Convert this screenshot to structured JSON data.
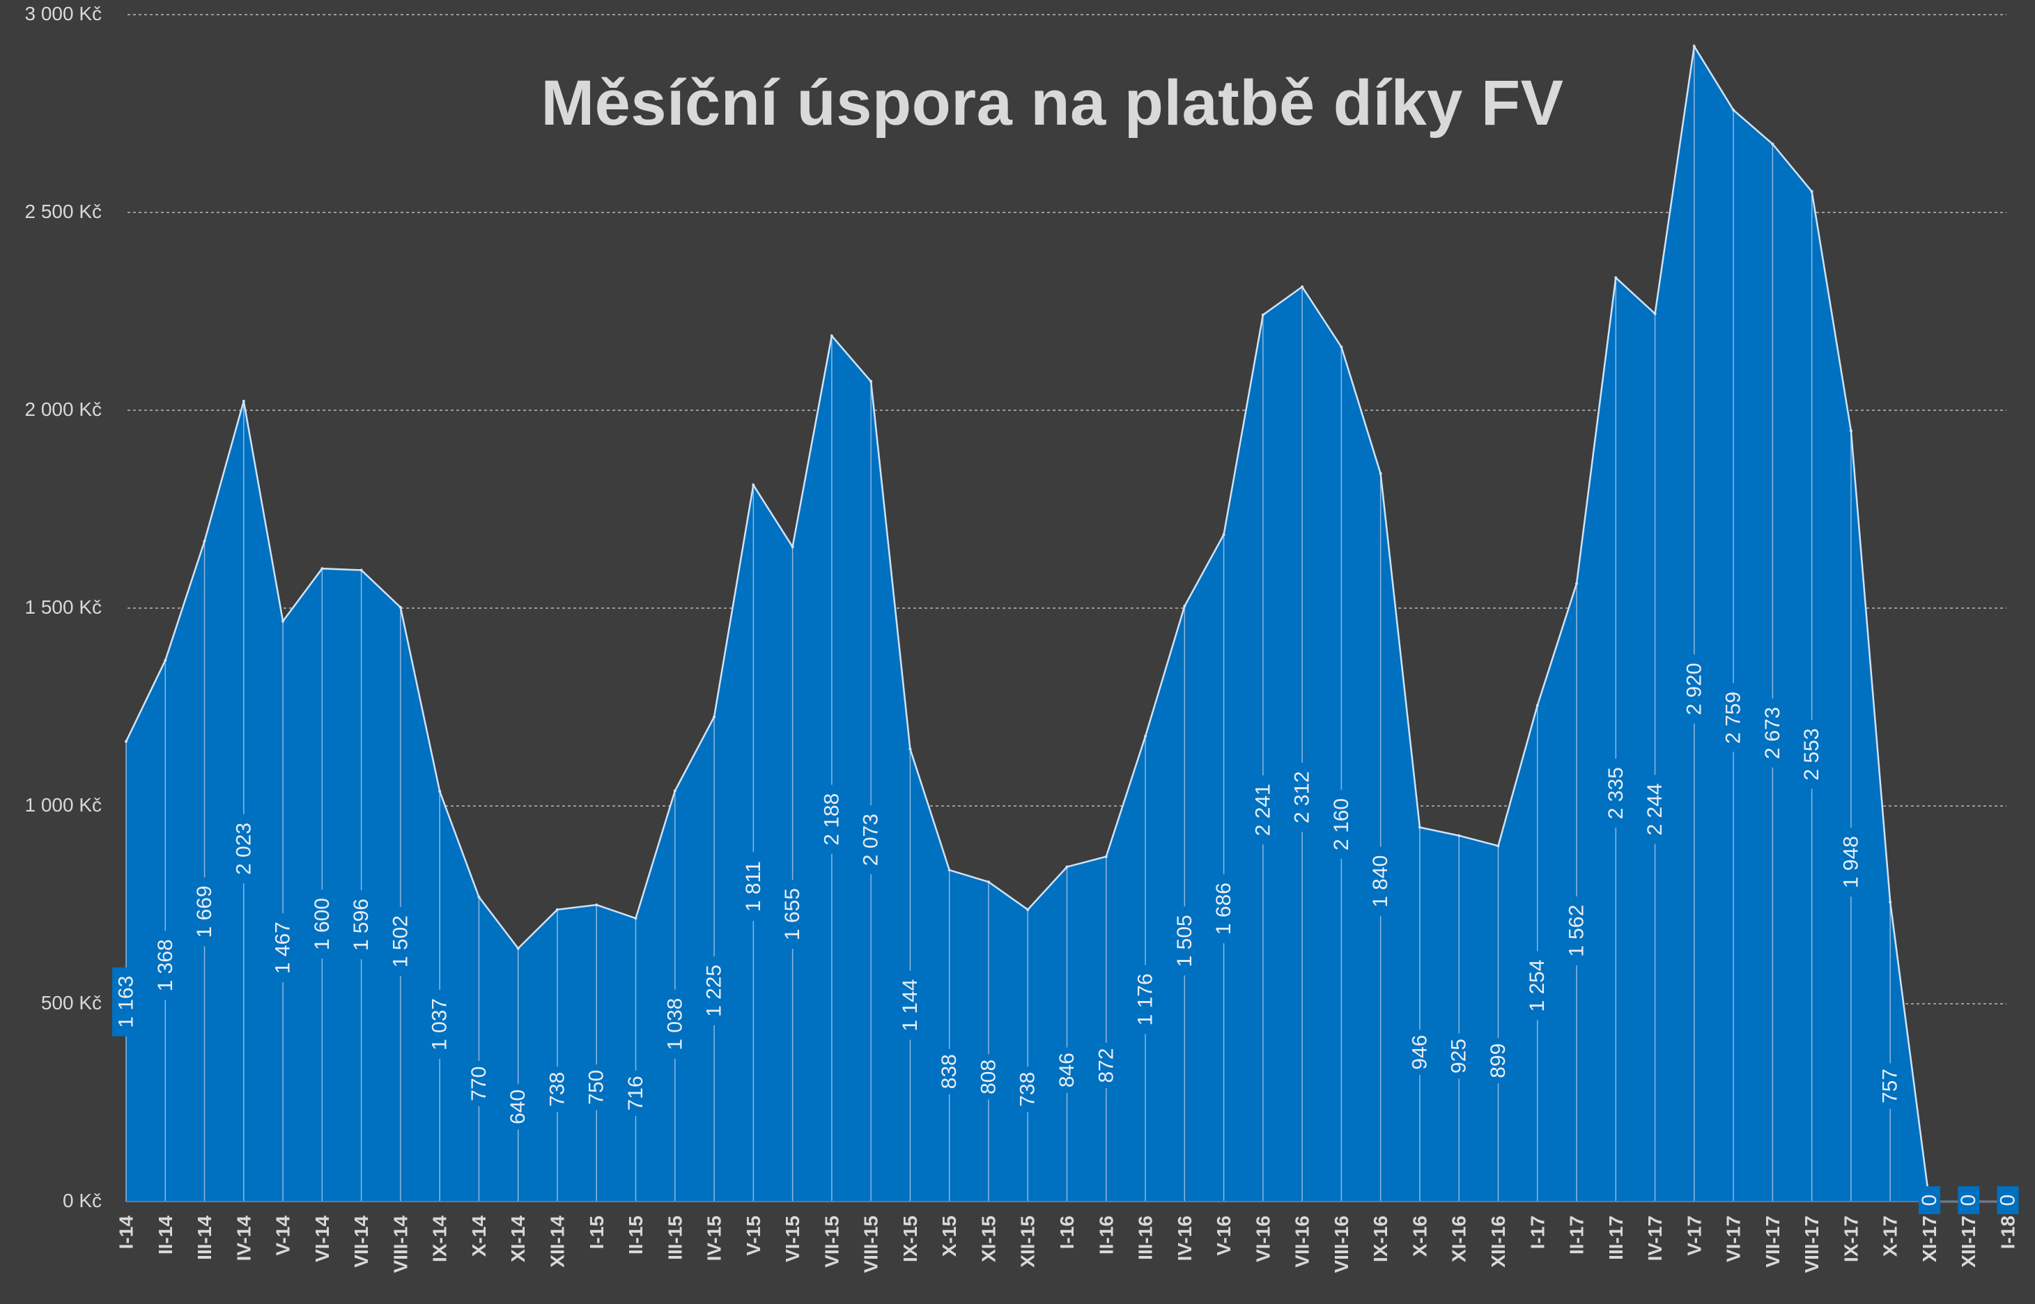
{
  "chart_data": {
    "type": "area",
    "title": "Měsíční úspora na platbě díky FV",
    "xlabel": "",
    "ylabel": "",
    "ylim": [
      0,
      3000
    ],
    "y_ticks": [
      "0 Kč",
      "500 Kč",
      "1 000 Kč",
      "1 500 Kč",
      "2 000 Kč",
      "2 500 Kč",
      "3 000 Kč"
    ],
    "y_tick_values": [
      0,
      500,
      1000,
      1500,
      2000,
      2500,
      3000
    ],
    "grid": true,
    "categories": [
      "I-14",
      "II-14",
      "III-14",
      "IV-14",
      "V-14",
      "VI-14",
      "VII-14",
      "VIII-14",
      "IX-14",
      "X-14",
      "XI-14",
      "XII-14",
      "I-15",
      "II-15",
      "III-15",
      "IV-15",
      "V-15",
      "VI-15",
      "VII-15",
      "VIII-15",
      "IX-15",
      "X-15",
      "XI-15",
      "XII-15",
      "I-16",
      "II-16",
      "III-16",
      "IV-16",
      "V-16",
      "VI-16",
      "VII-16",
      "VIII-16",
      "IX-16",
      "X-16",
      "XI-16",
      "XII-16",
      "I-17",
      "II-17",
      "III-17",
      "IV-17",
      "V-17",
      "VI-17",
      "VII-17",
      "VIII-17",
      "IX-17",
      "X-17",
      "XI-17",
      "XII-17",
      "I-18"
    ],
    "values": [
      1163,
      1368,
      1669,
      2023,
      1467,
      1600,
      1596,
      1502,
      1037,
      770,
      640,
      738,
      750,
      716,
      1038,
      1225,
      1811,
      1655,
      2188,
      2073,
      1144,
      838,
      808,
      738,
      846,
      872,
      1176,
      1505,
      1686,
      2241,
      2312,
      2160,
      1840,
      946,
      925,
      899,
      1254,
      1562,
      2335,
      2244,
      2920,
      2759,
      2673,
      2553,
      1948,
      757,
      0,
      0,
      0
    ],
    "data_labels": [
      "1 163",
      "1 368",
      "1 669",
      "2 023",
      "1 467",
      "1 600",
      "1 596",
      "1 502",
      "1 037",
      "770",
      "640",
      "738",
      "750",
      "716",
      "1 038",
      "1 225",
      "1 811",
      "1 655",
      "2 188",
      "2 073",
      "1 144",
      "838",
      "808",
      "738",
      "846",
      "872",
      "1 176",
      "1 505",
      "1 686",
      "2 241",
      "2 312",
      "2 160",
      "1 840",
      "946",
      "925",
      "899",
      "1 254",
      "1 562",
      "2 335",
      "2 244",
      "2 920",
      "2 759",
      "2 673",
      "2 553",
      "1 948",
      "757",
      "0",
      "0",
      "0"
    ],
    "colors": {
      "background": "#3d3d3d",
      "area": "#0070c0",
      "area_line": "#cfe3f7",
      "drop_line": "#8fb8e0",
      "grid": "#9a9a9a",
      "text": "#d9d9d9",
      "label_text": "#e8eef5"
    }
  }
}
